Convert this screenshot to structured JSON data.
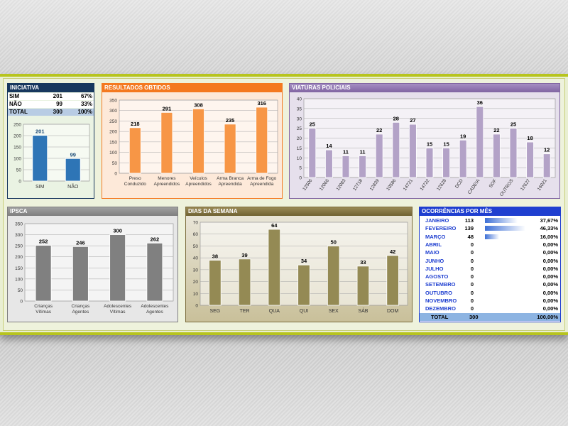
{
  "iniciativa": {
    "title": "INICIATIVA",
    "rows": [
      {
        "label": "SIM",
        "value": "201",
        "pct": "67%"
      },
      {
        "label": "NÃO",
        "value": "99",
        "pct": "33%"
      },
      {
        "label": "TOTAL",
        "value": "300",
        "pct": "100%"
      }
    ]
  },
  "resultados": {
    "title": "RESULTADOS OBTIDOS"
  },
  "viaturas": {
    "title": "VIATURAS POLICIAIS"
  },
  "ipsca": {
    "title": "IPSCA"
  },
  "dias": {
    "title": "DIAS DA SEMANA"
  },
  "ocorrencias": {
    "title": "OCORRÊNCIAS POR MÊS",
    "months": [
      {
        "name": "JANEIRO",
        "value": "113",
        "pct": "37,67%",
        "fraction": 0.3767
      },
      {
        "name": "FEVEREIRO",
        "value": "139",
        "pct": "46,33%",
        "fraction": 0.4633
      },
      {
        "name": "MARÇO",
        "value": "48",
        "pct": "16,00%",
        "fraction": 0.16
      },
      {
        "name": "ABRIL",
        "value": "0",
        "pct": "0,00%",
        "fraction": 0
      },
      {
        "name": "MAIO",
        "value": "0",
        "pct": "0,00%",
        "fraction": 0
      },
      {
        "name": "JUNHO",
        "value": "0",
        "pct": "0,00%",
        "fraction": 0
      },
      {
        "name": "JULHO",
        "value": "0",
        "pct": "0,00%",
        "fraction": 0
      },
      {
        "name": "AGOSTO",
        "value": "0",
        "pct": "0,00%",
        "fraction": 0
      },
      {
        "name": "SETEMBRO",
        "value": "0",
        "pct": "0,00%",
        "fraction": 0
      },
      {
        "name": "OUTUBRO",
        "value": "0",
        "pct": "0,00%",
        "fraction": 0
      },
      {
        "name": "NOVEMBRO",
        "value": "0",
        "pct": "0,00%",
        "fraction": 0
      },
      {
        "name": "DEZEMBRO",
        "value": "0",
        "pct": "0,00%",
        "fraction": 0
      }
    ],
    "total": {
      "label": "TOTAL",
      "value": "300",
      "pct": "100,00%"
    }
  },
  "colors": {
    "iniciativa_header": "#17375e",
    "iniciativa_bar": "#2e75b6",
    "resultados_header": "#f47920",
    "resultados_bar": "#f79646",
    "viaturas_header": "#8064a2",
    "viaturas_bar": "#b3a2c7",
    "ipsca_header": "#7f7f7f",
    "ipsca_bar": "#808080",
    "dias_header": "#7a6a3a",
    "dias_bar": "#948a54",
    "ocorrencias_header": "#1f3fd0"
  },
  "chart_data": [
    {
      "id": "iniciativa",
      "type": "bar",
      "categories": [
        "SIM",
        "NÃO"
      ],
      "values": [
        201,
        99
      ],
      "ylim": [
        0,
        250
      ],
      "yticks": [
        0,
        50,
        100,
        150,
        200,
        250
      ]
    },
    {
      "id": "resultados",
      "type": "bar",
      "categories": [
        "Preso Conduzido",
        "Menores Apreendidos",
        "Veículos Apreendidos",
        "Arma Branca Apreendida",
        "Arma de Fogo Apreendida"
      ],
      "values": [
        218,
        291,
        308,
        235,
        316
      ],
      "ylim": [
        0,
        350
      ],
      "yticks": [
        0,
        50,
        100,
        150,
        200,
        250,
        300,
        350
      ]
    },
    {
      "id": "viaturas",
      "type": "bar",
      "categories": [
        "12506",
        "12066",
        "12083",
        "12718",
        "12839",
        "10586",
        "14721",
        "14722",
        "12628",
        "DCD",
        "CADEIA",
        "SOF",
        "OUTROS",
        "12627",
        "16021"
      ],
      "values": [
        25,
        14,
        11,
        11,
        22,
        28,
        27,
        15,
        15,
        19,
        36,
        22,
        25,
        18,
        12
      ],
      "ylim": [
        0,
        40
      ],
      "yticks": [
        0,
        5,
        10,
        15,
        20,
        25,
        30,
        35,
        40
      ]
    },
    {
      "id": "ipsca",
      "type": "bar",
      "categories": [
        "Crianças Vítimas",
        "Crianças Agentes",
        "Adolescentes Vítimas",
        "Adolescentes Agentes"
      ],
      "values": [
        252,
        246,
        300,
        262
      ],
      "ylim": [
        0,
        350
      ],
      "yticks": [
        0,
        50,
        100,
        150,
        200,
        250,
        300,
        350
      ]
    },
    {
      "id": "dias",
      "type": "bar",
      "categories": [
        "SEG",
        "TER",
        "QUA",
        "QUI",
        "SEX",
        "SÁB",
        "DOM"
      ],
      "values": [
        38,
        39,
        64,
        34,
        50,
        33,
        42
      ],
      "ylim": [
        0,
        70
      ],
      "yticks": [
        0,
        10,
        20,
        30,
        40,
        50,
        60,
        70
      ]
    }
  ]
}
